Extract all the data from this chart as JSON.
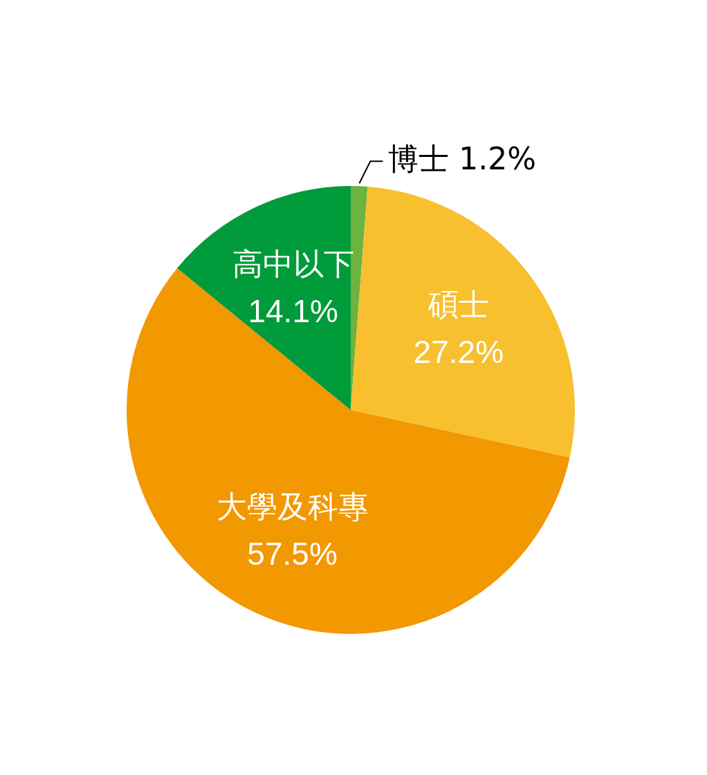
{
  "chart_data": {
    "type": "pie",
    "categories": [
      "博士",
      "碩士",
      "大學及科專",
      "高中以下"
    ],
    "values": [
      1.2,
      27.2,
      57.5,
      14.1
    ],
    "value_labels": [
      "1.2%",
      "27.2%",
      "57.5%",
      "14.1%"
    ],
    "colors": [
      "#6cb33f",
      "#f8c02e",
      "#f29800",
      "#009b3a"
    ],
    "legend": false
  }
}
